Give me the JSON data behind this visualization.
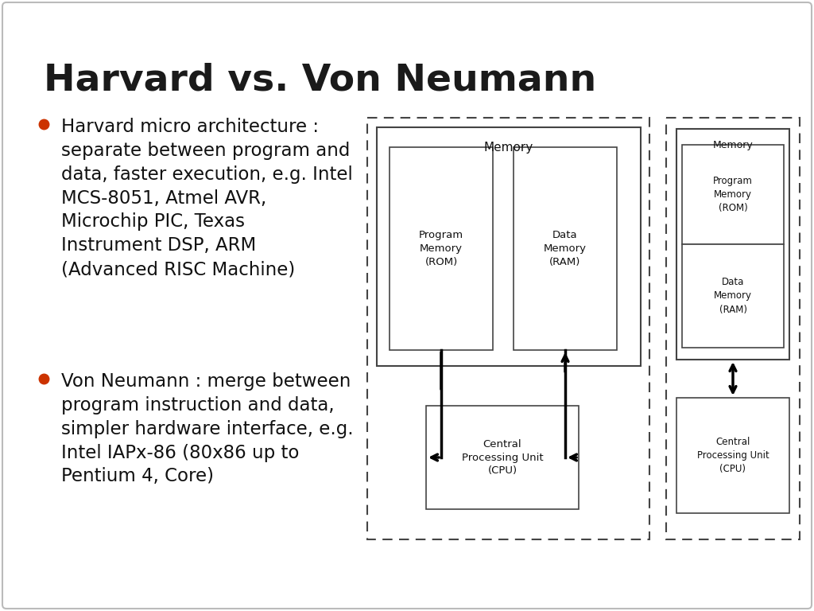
{
  "title": "Harvard vs. Von Neumann",
  "title_fontsize": 34,
  "title_fontweight": "bold",
  "title_color": "#1a1a1a",
  "bg_color": "#ffffff",
  "slide_border_color": "#bbbbbb",
  "bullet_color": "#cc3300",
  "bullet1_lines": [
    "Harvard micro architecture :",
    "separate between program and",
    "data, faster execution, e.g. Intel",
    "MCS-8051, Atmel AVR,",
    "Microchip PIC, Texas",
    "Instrument DSP, ARM",
    "(Advanced RISC Machine)"
  ],
  "bullet2_lines": [
    "Von Neumann : merge between",
    "program instruction and data,",
    "simpler hardware interface, e.g.",
    "Intel IAPx-86 (80x86 up to",
    "Pentium 4, Core)"
  ],
  "text_fontsize": 16.5,
  "text_color": "#111111",
  "edge_color": "#444444",
  "arrow_color": "#000000",
  "arrow_lw": 2.5
}
